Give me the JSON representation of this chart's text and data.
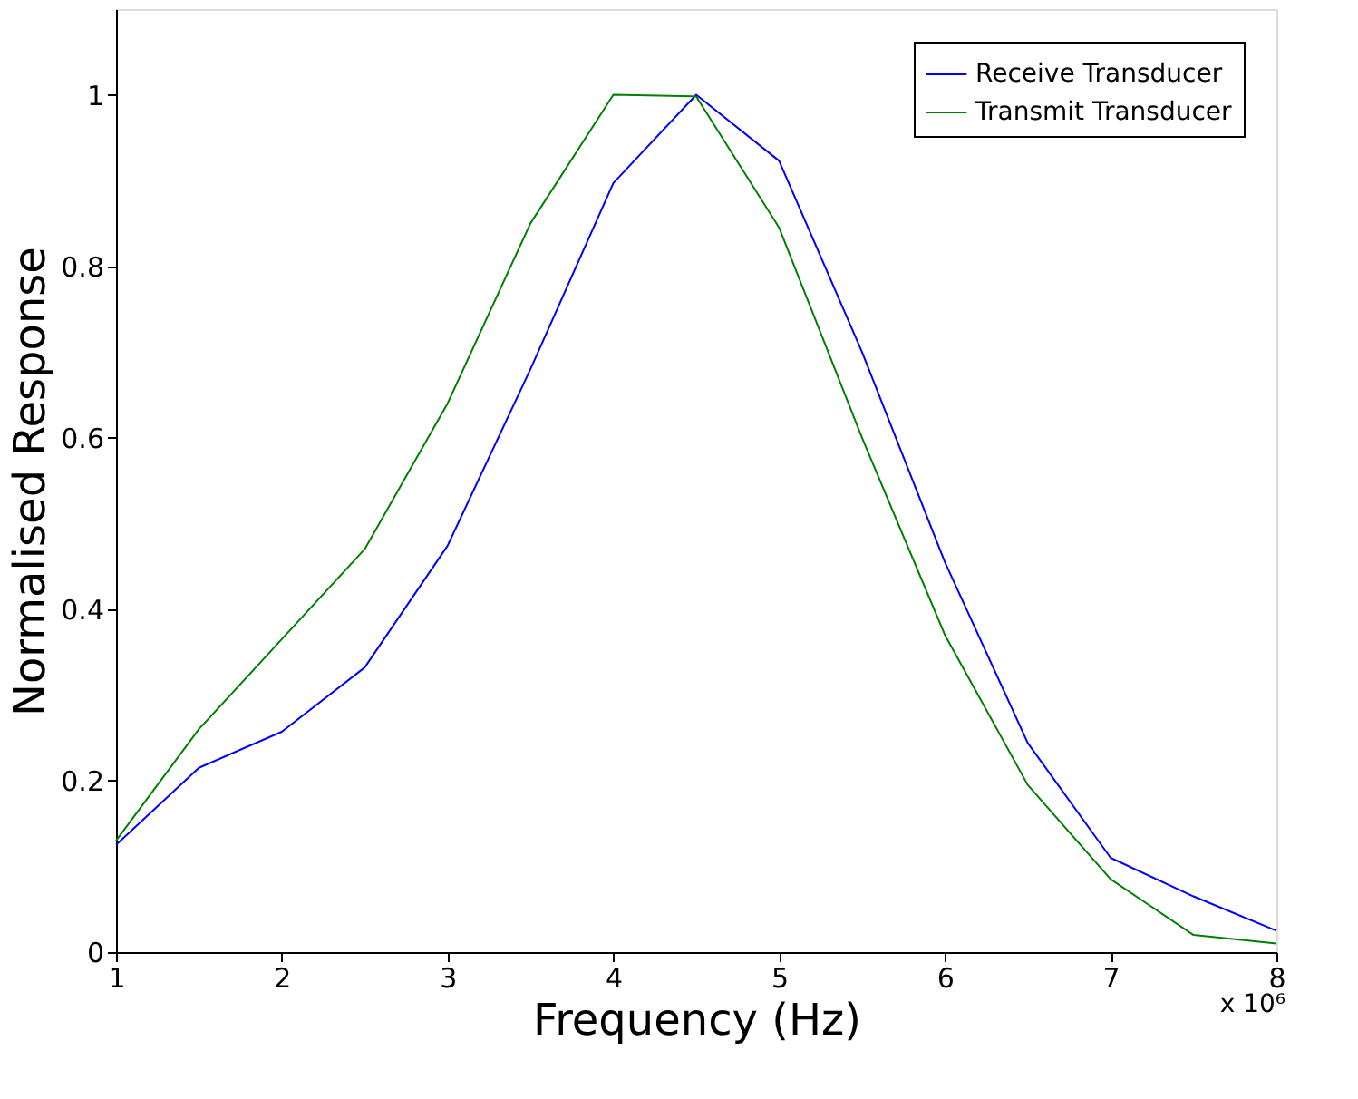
{
  "chart_data": {
    "type": "line",
    "xlabel": "Frequency (Hz)",
    "ylabel": "Normalised Response",
    "x": [
      1,
      1.5,
      2,
      2.5,
      3,
      3.5,
      4,
      4.5,
      5,
      5.5,
      6,
      6.5,
      7,
      7.5,
      8
    ],
    "series": [
      {
        "name": "Receive Transducer",
        "color": "#0000ff",
        "values": [
          0.125,
          0.215,
          0.257,
          0.332,
          0.474,
          0.68,
          0.897,
          1.0,
          0.923,
          0.7,
          0.455,
          0.244,
          0.11,
          0.065,
          0.025
        ]
      },
      {
        "name": "Transmit Transducer",
        "color": "#008000",
        "values": [
          0.13,
          0.26,
          0.365,
          0.47,
          0.64,
          0.85,
          1.0,
          0.998,
          0.845,
          0.6,
          0.37,
          0.195,
          0.085,
          0.02,
          0.01
        ]
      }
    ],
    "xlim": [
      1,
      8
    ],
    "xticks": [
      1,
      2,
      3,
      4,
      5,
      6,
      7,
      8
    ],
    "ylim": [
      0,
      1.1
    ],
    "yticks": [
      0,
      0.2,
      0.4,
      0.6,
      0.8,
      1
    ],
    "legend": "top right",
    "grid": false,
    "marker": "none",
    "line_style": "solid",
    "annotations": [
      "x 10⁶"
    ]
  }
}
